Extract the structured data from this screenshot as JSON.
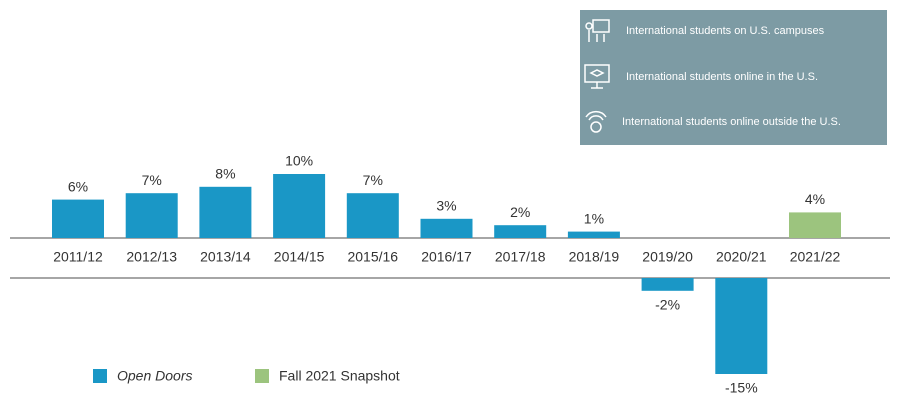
{
  "chart_data": {
    "type": "bar",
    "categories": [
      "2011/12",
      "2012/13",
      "2013/14",
      "2014/15",
      "2015/16",
      "2016/17",
      "2017/18",
      "2018/19",
      "2019/20",
      "2020/21",
      "2021/22"
    ],
    "series": [
      {
        "name": "Open Doors",
        "color": "#1a97c6",
        "values": [
          6,
          7,
          8,
          10,
          7,
          3,
          2,
          1,
          -2,
          -15,
          null
        ],
        "value_labels": [
          "6%",
          "7%",
          "8%",
          "10%",
          "7%",
          "3%",
          "2%",
          "1%",
          "-2%",
          "-15%",
          null
        ]
      },
      {
        "name": "Fall 2021 Snapshot",
        "color": "#9cc47e",
        "values": [
          null,
          null,
          null,
          null,
          null,
          null,
          null,
          null,
          null,
          null,
          4
        ],
        "value_labels": [
          null,
          null,
          null,
          null,
          null,
          null,
          null,
          null,
          null,
          null,
          "4%"
        ]
      }
    ]
  },
  "info_box": {
    "items": [
      "International students on U.S. campuses",
      "International students online in the U.S.",
      "International students online outside the U.S."
    ]
  }
}
